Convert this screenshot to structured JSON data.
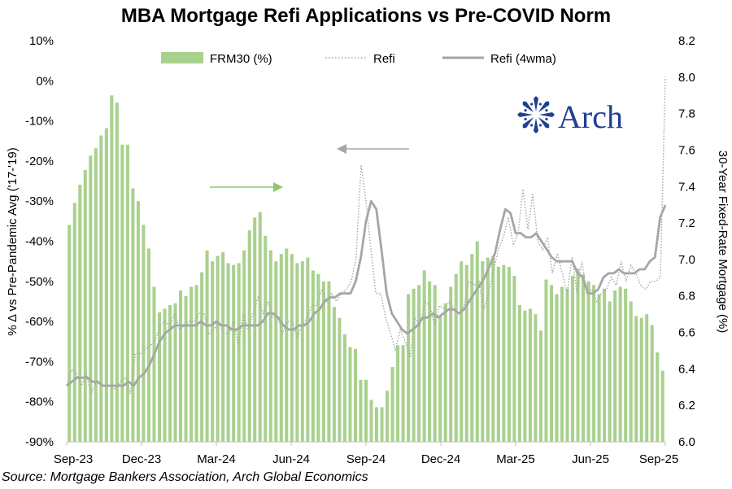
{
  "chart_data": {
    "type": "bar+line",
    "title": "MBA Mortgage Refi Applications vs Pre-COVID Norm",
    "ylabel_left": "% Δ vs Pre-Pandemic Avg ('17-'19)",
    "ylabel_right": "30-Year Fixed-Rate Mortgage (%)",
    "ylim_left": [
      -90,
      10
    ],
    "ylim_right": [
      6.0,
      8.2
    ],
    "yticks_left": [
      "10%",
      "0%",
      "-10%",
      "-20%",
      "-30%",
      "-40%",
      "-50%",
      "-60%",
      "-70%",
      "-80%",
      "-90%"
    ],
    "yticks_right": [
      "8.2",
      "8.0",
      "7.8",
      "7.6",
      "7.4",
      "7.2",
      "7.0",
      "6.8",
      "6.6",
      "6.4",
      "6.2",
      "6.0"
    ],
    "x_tick_labels": [
      "Sep-23",
      "Dec-23",
      "Mar-24",
      "Jun-24",
      "Sep-24",
      "Dec-24",
      "Mar-25",
      "Jun-25",
      "Sep-25"
    ],
    "legend": [
      "FRM30 (%)",
      "Refi",
      "Refi (4wma)"
    ],
    "colors": {
      "frm30": "#a9d18e",
      "refi": "#a6a6a6",
      "refi_4wma": "#a6a6a6",
      "logo": "#1f3f93"
    },
    "series": [
      {
        "name": "FRM30 (%)",
        "axis": "right",
        "style": "bar",
        "values": [
          7.19,
          7.31,
          7.41,
          7.49,
          7.57,
          7.61,
          7.68,
          7.72,
          7.9,
          7.86,
          7.63,
          7.63,
          7.39,
          7.32,
          7.19,
          7.06,
          6.85,
          6.71,
          6.73,
          6.75,
          6.76,
          6.83,
          6.8,
          6.85,
          6.86,
          6.93,
          7.05,
          6.99,
          7.02,
          7.04,
          6.98,
          6.97,
          6.98,
          7.05,
          7.16,
          7.23,
          7.26,
          7.13,
          7.05,
          6.99,
          7.03,
          7.06,
          7.03,
          6.98,
          6.99,
          7.01,
          6.94,
          6.92,
          6.88,
          6.88,
          6.74,
          6.68,
          6.59,
          6.52,
          6.51,
          6.34,
          6.34,
          6.23,
          6.19,
          6.19,
          6.28,
          6.41,
          6.53,
          6.53,
          6.81,
          6.84,
          6.86,
          6.94,
          6.88,
          6.86,
          6.69,
          6.76,
          6.85,
          6.92,
          6.99,
          6.97,
          7.03,
          7.1,
          6.99,
          7.01,
          7.02,
          6.96,
          6.97,
          6.96,
          6.91,
          6.75,
          6.72,
          6.73,
          6.7,
          6.61,
          6.89,
          6.86,
          6.81,
          6.85,
          6.84,
          6.91,
          6.95,
          6.92,
          6.88,
          6.86,
          6.81,
          6.84,
          6.77,
          6.83,
          6.85,
          6.84,
          6.77,
          6.69,
          6.68,
          6.7,
          6.64,
          6.49,
          6.39
        ]
      },
      {
        "name": "Refi",
        "axis": "left",
        "style": "dotted",
        "values": [
          -76,
          -72,
          -73,
          -76,
          -73,
          -78,
          -75,
          -76,
          -76,
          -76,
          -77,
          -75,
          -74,
          -78,
          -68,
          -68,
          -67,
          -66,
          -65,
          -61,
          -60,
          -61,
          -58,
          -62,
          -61,
          -60,
          -60,
          -58,
          -58,
          -63,
          -62,
          -60,
          -63,
          -63,
          -60,
          -66,
          -58,
          -62,
          -58,
          -54,
          -58,
          -55,
          -59,
          -59,
          -63,
          -60,
          -60,
          -64,
          -61,
          -59,
          -56,
          -56,
          -52,
          -55,
          -53,
          -55,
          -53,
          -52,
          -50,
          -44,
          -21,
          -30,
          -42,
          -53,
          -53,
          -59,
          -63,
          -67,
          -62,
          -65,
          -69,
          -59,
          -61,
          -55,
          -56,
          -61,
          -56,
          -57,
          -55,
          -57,
          -58,
          -56,
          -50,
          -51,
          -50,
          -57,
          -53,
          -47,
          -42,
          -39,
          -34,
          -41,
          -38,
          -27,
          -37,
          -28,
          -40,
          -42,
          -39,
          -48,
          -43,
          -48,
          -53,
          -44,
          -53,
          -45,
          -53,
          -52,
          -55,
          -53,
          -52,
          -49,
          -51,
          -45,
          -50,
          -46,
          -48,
          -51,
          -52,
          -50,
          -50,
          -49,
          1
        ]
      },
      {
        "name": "Refi (4wma)",
        "axis": "left",
        "style": "solid",
        "values": [
          -76,
          -75,
          -74,
          -74,
          -74,
          -75,
          -75,
          -76,
          -76,
          -76,
          -76,
          -76,
          -75,
          -76,
          -74,
          -73,
          -71,
          -68,
          -65,
          -63,
          -62,
          -61,
          -61,
          -61,
          -61,
          -61,
          -60,
          -61,
          -61,
          -60,
          -61,
          -61,
          -62,
          -62,
          -61,
          -61,
          -61,
          -61,
          -60,
          -58,
          -58,
          -59,
          -61,
          -62,
          -62,
          -61,
          -61,
          -60,
          -58,
          -57,
          -55,
          -54,
          -54,
          -53,
          -53,
          -53,
          -50,
          -44,
          -35,
          -30,
          -32,
          -42,
          -53,
          -58,
          -60,
          -62,
          -63,
          -62,
          -61,
          -59,
          -59,
          -58,
          -59,
          -58,
          -57,
          -57,
          -58,
          -57,
          -55,
          -53,
          -51,
          -49,
          -46,
          -43,
          -37,
          -32,
          -33,
          -38,
          -38,
          -39,
          -39,
          -38,
          -40,
          -42,
          -44,
          -45,
          -45,
          -45,
          -45,
          -48,
          -49,
          -53,
          -53,
          -52,
          -49,
          -48,
          -48,
          -47,
          -48,
          -48,
          -48,
          -47,
          -47,
          -45,
          -44,
          -34,
          -31
        ]
      }
    ],
    "annotations": [
      "left arrow → left axis (Refi)",
      "right arrow → right axis (FRM30)"
    ]
  },
  "logo": {
    "text": "Arch",
    "icon": "arch-star-icon"
  },
  "source": "Source: Mortgage Bankers Association, Arch Global Economics"
}
